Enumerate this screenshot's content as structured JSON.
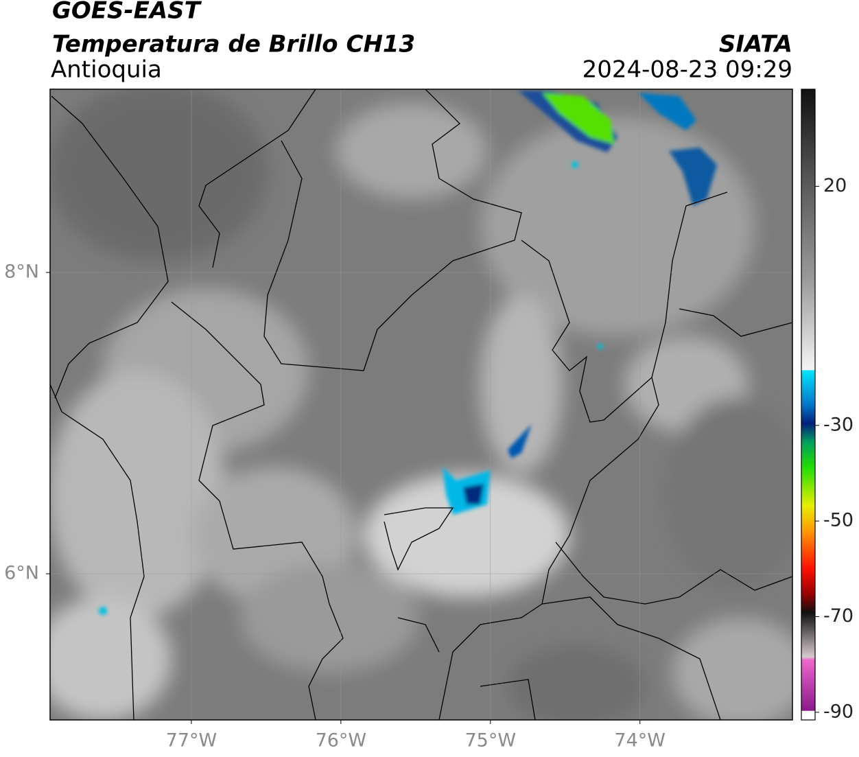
{
  "header": {
    "satellite": "GOES-EAST",
    "product": "Temperatura de Brillo CH13",
    "region": "Antioquia",
    "agency": "SIATA",
    "datetime": "2024-08-23 09:29"
  },
  "map": {
    "xlim": [
      -77.945,
      -72.98
    ],
    "ylim": [
      5.03,
      9.216
    ],
    "xticks": [
      {
        "value": -77,
        "label": "77°W"
      },
      {
        "value": -76,
        "label": "76°W"
      },
      {
        "value": -75,
        "label": "75°W"
      },
      {
        "value": -74,
        "label": "74°W"
      }
    ],
    "yticks": [
      {
        "value": 8,
        "label": "8°N"
      },
      {
        "value": 6,
        "label": "6°N"
      }
    ],
    "grid": true
  },
  "colorbar": {
    "lim": [
      -91.6,
      40.3
    ],
    "ticks": [
      20,
      -30,
      -50,
      -70,
      -90
    ]
  }
}
